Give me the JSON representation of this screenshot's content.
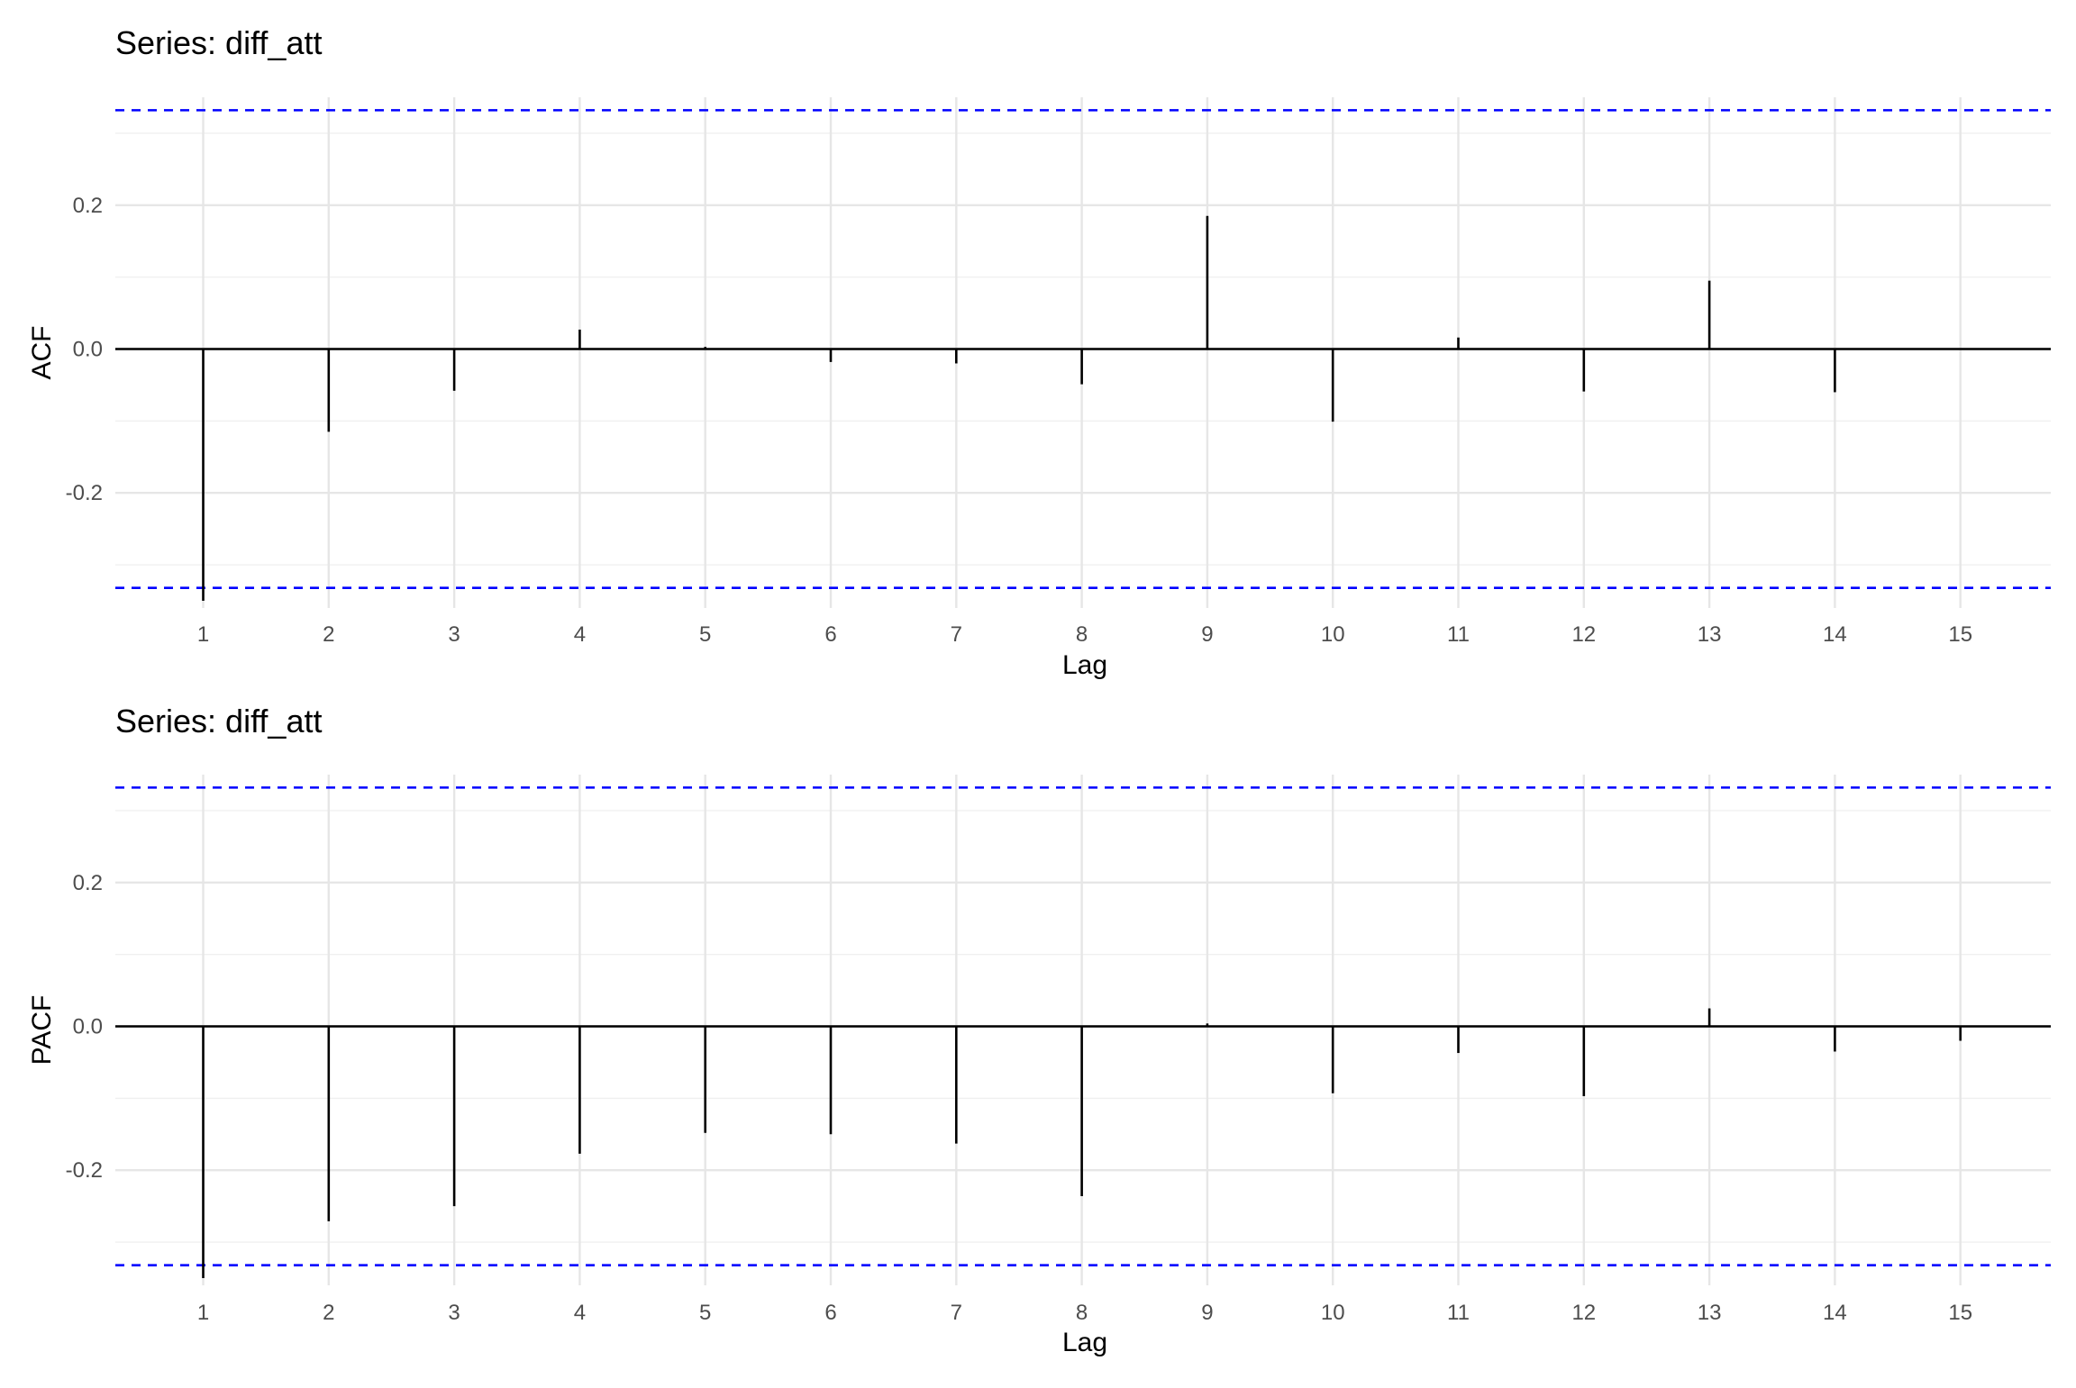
{
  "chart_data": [
    {
      "type": "bar",
      "title": "Series: diff_att",
      "xlabel": "Lag",
      "ylabel": "ACF",
      "x": [
        1,
        2,
        3,
        4,
        5,
        6,
        7,
        8,
        9,
        10,
        11,
        12,
        13,
        14,
        15
      ],
      "values": [
        -0.35,
        -0.115,
        -0.058,
        0.027,
        0.003,
        -0.018,
        -0.02,
        -0.049,
        0.185,
        -0.101,
        0.016,
        -0.059,
        0.095,
        -0.06,
        0.0
      ],
      "confidence_bounds": [
        -0.332,
        0.332
      ],
      "ylim": [
        -0.36,
        0.35
      ],
      "yticks": [
        "-0.2",
        "0.0",
        "0.2"
      ],
      "ytick_values": [
        -0.2,
        0.0,
        0.2
      ],
      "xticks": [
        "1",
        "2",
        "3",
        "4",
        "5",
        "6",
        "7",
        "8",
        "9",
        "10",
        "11",
        "12",
        "13",
        "14",
        "15"
      ],
      "colors": {
        "bars": "#000000",
        "confidence": "#0000ff",
        "grid": "#e6e6e6"
      },
      "grid": true
    },
    {
      "type": "bar",
      "title": "Series: diff_att",
      "xlabel": "Lag",
      "ylabel": "PACF",
      "x": [
        1,
        2,
        3,
        4,
        5,
        6,
        7,
        8,
        9,
        10,
        11,
        12,
        13,
        14,
        15
      ],
      "values": [
        -0.35,
        -0.271,
        -0.25,
        -0.177,
        -0.148,
        -0.15,
        -0.163,
        -0.236,
        0.004,
        -0.093,
        -0.037,
        -0.097,
        0.025,
        -0.035,
        -0.02
      ],
      "confidence_bounds": [
        -0.332,
        0.332
      ],
      "ylim": [
        -0.36,
        0.35
      ],
      "yticks": [
        "-0.2",
        "0.0",
        "0.2"
      ],
      "ytick_values": [
        -0.2,
        0.0,
        0.2
      ],
      "xticks": [
        "1",
        "2",
        "3",
        "4",
        "5",
        "6",
        "7",
        "8",
        "9",
        "10",
        "11",
        "12",
        "13",
        "14",
        "15"
      ],
      "colors": {
        "bars": "#000000",
        "confidence": "#0000ff",
        "grid": "#e6e6e6"
      },
      "grid": true
    }
  ]
}
